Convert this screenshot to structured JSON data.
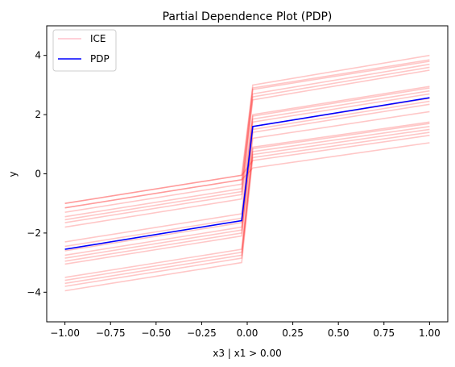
{
  "chart_data": {
    "type": "line",
    "title": "Partial Dependence Plot (PDP)",
    "xlabel": "x3 | x1 > 0.00",
    "ylabel": "y",
    "xlim": [
      -1.1,
      1.1
    ],
    "ylim": [
      -5,
      5
    ],
    "xticks": [
      -1.0,
      -0.75,
      -0.5,
      -0.25,
      0.0,
      0.25,
      0.5,
      0.75,
      1.0
    ],
    "xtick_labels": [
      "−1.00",
      "−0.75",
      "−0.50",
      "−0.25",
      "0.00",
      "0.25",
      "0.50",
      "0.75",
      "1.00"
    ],
    "yticks": [
      -4,
      -2,
      0,
      2,
      4
    ],
    "ytick_labels": [
      "−4",
      "−2",
      "0",
      "2",
      "4"
    ],
    "grid": false,
    "legend_placement": "top-left",
    "ice_color": "#ff0000",
    "ice_legend_color": "#ffc0cb",
    "pdp_color": "#0000ff",
    "series": [
      {
        "name": "PDP",
        "x": [
          -1.0,
          -0.0303,
          0.0303,
          1.0
        ],
        "y": [
          -2.55,
          -1.58,
          1.6,
          2.57
        ]
      },
      {
        "name": "ICE",
        "x": [
          -1.0,
          -0.0303,
          0.0303,
          1.0
        ],
        "curves_right": [
          {
            "x0": 0.0303,
            "y0": 3.0,
            "y1": 4.0
          },
          {
            "x0": 0.0303,
            "y0": 2.9,
            "y1": 3.85
          },
          {
            "x0": 0.0303,
            "y0": 2.85,
            "y1": 3.8
          },
          {
            "x0": 0.0303,
            "y0": 2.7,
            "y1": 3.7
          },
          {
            "x0": 0.0303,
            "y0": 2.6,
            "y1": 3.6
          },
          {
            "x0": 0.0303,
            "y0": 2.5,
            "y1": 3.5
          },
          {
            "x0": 0.0303,
            "y0": 2.0,
            "y1": 2.95
          },
          {
            "x0": 0.0303,
            "y0": 1.95,
            "y1": 2.9
          },
          {
            "x0": 0.0303,
            "y0": 1.85,
            "y1": 2.8
          },
          {
            "x0": 0.0303,
            "y0": 1.75,
            "y1": 2.7
          },
          {
            "x0": 0.0303,
            "y0": 1.6,
            "y1": 2.55
          },
          {
            "x0": 0.0303,
            "y0": 1.5,
            "y1": 2.45
          },
          {
            "x0": 0.0303,
            "y0": 1.4,
            "y1": 2.35
          },
          {
            "x0": 0.0303,
            "y0": 1.2,
            "y1": 2.1
          },
          {
            "x0": 0.0303,
            "y0": 0.9,
            "y1": 1.75
          },
          {
            "x0": 0.0303,
            "y0": 0.85,
            "y1": 1.7
          },
          {
            "x0": 0.0303,
            "y0": 0.75,
            "y1": 1.6
          },
          {
            "x0": 0.0303,
            "y0": 0.65,
            "y1": 1.5
          },
          {
            "x0": 0.0303,
            "y0": 0.55,
            "y1": 1.4
          },
          {
            "x0": 0.0303,
            "y0": 0.45,
            "y1": 1.3
          },
          {
            "x0": 0.0303,
            "y0": 0.2,
            "y1": 1.05
          }
        ],
        "curves_left": [
          {
            "y0": -1.0,
            "y1": -0.05
          },
          {
            "y0": -1.15,
            "y1": -0.2
          },
          {
            "y0": -1.3,
            "y1": -0.35
          },
          {
            "y0": -1.45,
            "y1": -0.5
          },
          {
            "y0": -1.55,
            "y1": -0.6
          },
          {
            "y0": -1.65,
            "y1": -0.7
          },
          {
            "y0": -1.8,
            "y1": -0.85
          },
          {
            "y0": -2.3,
            "y1": -1.35
          },
          {
            "y0": -2.45,
            "y1": -1.5
          },
          {
            "y0": -2.6,
            "y1": -1.65
          },
          {
            "y0": -2.75,
            "y1": -1.8
          },
          {
            "y0": -2.85,
            "y1": -1.9
          },
          {
            "y0": -2.95,
            "y1": -2.0
          },
          {
            "y0": -3.05,
            "y1": -2.1
          },
          {
            "y0": -3.5,
            "y1": -2.55
          },
          {
            "y0": -3.6,
            "y1": -2.65
          },
          {
            "y0": -3.7,
            "y1": -2.75
          },
          {
            "y0": -3.8,
            "y1": -2.85
          },
          {
            "y0": -3.95,
            "y1": -3.0
          }
        ]
      }
    ],
    "legend": [
      {
        "label": "ICE",
        "color": "#ffc0cb"
      },
      {
        "label": "PDP",
        "color": "#0000ff"
      }
    ]
  }
}
